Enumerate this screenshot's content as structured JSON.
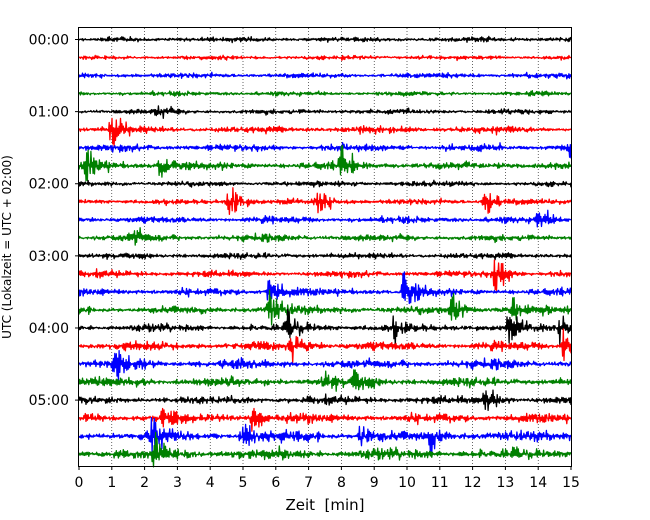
{
  "chart_data": {
    "type": "line",
    "title": "",
    "xlabel": "Zeit  [min]",
    "ylabel": "UTC (Lokalzeit = UTC + 02:00)",
    "xlim": [
      0,
      15
    ],
    "x_ticks": [
      "0",
      "1",
      "2",
      "3",
      "4",
      "5",
      "6",
      "7",
      "8",
      "9",
      "10",
      "11",
      "12",
      "13",
      "14",
      "15"
    ],
    "y_tick_labels": [
      "00:00",
      "01:00",
      "02:00",
      "03:00",
      "04:00",
      "05:00"
    ],
    "y_tick_rows": [
      0,
      4,
      8,
      12,
      16,
      20
    ],
    "grid": "vertical-dotted",
    "trace_colors": [
      "#000000",
      "#ff0000",
      "#0000ff",
      "#008000"
    ],
    "traces_start_times": [
      "00:00",
      "00:15",
      "00:30",
      "00:45",
      "01:00",
      "01:15",
      "01:30",
      "01:45",
      "02:00",
      "02:15",
      "02:30",
      "02:45",
      "03:00",
      "03:15",
      "03:30",
      "03:45",
      "04:00",
      "04:15",
      "04:30",
      "04:45",
      "05:00",
      "05:15",
      "05:30",
      "05:45"
    ],
    "trace_noise": [
      0.35,
      0.3,
      0.38,
      0.32,
      0.38,
      0.5,
      0.55,
      0.58,
      0.4,
      0.42,
      0.48,
      0.52,
      0.45,
      0.5,
      0.55,
      0.62,
      0.58,
      0.65,
      0.7,
      0.72,
      0.6,
      0.7,
      0.8,
      0.85
    ],
    "events": [
      {
        "row": 4,
        "t": 2.4,
        "amp": 0.5
      },
      {
        "row": 5,
        "t": 1.0,
        "amp": 1.8
      },
      {
        "row": 6,
        "t": 15.0,
        "amp": 0.8
      },
      {
        "row": 7,
        "t": 0.25,
        "amp": 1.3
      },
      {
        "row": 7,
        "t": 2.5,
        "amp": 1.5
      },
      {
        "row": 7,
        "t": 8.0,
        "amp": 1.3
      },
      {
        "row": 9,
        "t": 4.6,
        "amp": 1.2
      },
      {
        "row": 9,
        "t": 7.3,
        "amp": 1.1
      },
      {
        "row": 9,
        "t": 12.4,
        "amp": 1.3
      },
      {
        "row": 10,
        "t": 14.0,
        "amp": 1.0
      },
      {
        "row": 11,
        "t": 1.6,
        "amp": 0.9
      },
      {
        "row": 13,
        "t": 12.7,
        "amp": 1.6
      },
      {
        "row": 14,
        "t": 5.8,
        "amp": 1.2
      },
      {
        "row": 14,
        "t": 9.9,
        "amp": 1.9
      },
      {
        "row": 15,
        "t": 5.8,
        "amp": 1.3
      },
      {
        "row": 15,
        "t": 11.4,
        "amp": 1.3
      },
      {
        "row": 15,
        "t": 13.2,
        "amp": 1.0
      },
      {
        "row": 16,
        "t": 6.4,
        "amp": 1.1
      },
      {
        "row": 16,
        "t": 9.6,
        "amp": 0.9
      },
      {
        "row": 16,
        "t": 13.1,
        "amp": 1.2
      },
      {
        "row": 16,
        "t": 14.7,
        "amp": 1.1
      },
      {
        "row": 17,
        "t": 6.5,
        "amp": 1.1
      },
      {
        "row": 17,
        "t": 14.8,
        "amp": 1.3
      },
      {
        "row": 18,
        "t": 1.1,
        "amp": 1.2
      },
      {
        "row": 19,
        "t": 8.4,
        "amp": 0.9
      },
      {
        "row": 19,
        "t": 7.5,
        "amp": 0.8
      },
      {
        "row": 20,
        "t": 12.4,
        "amp": 1.2
      },
      {
        "row": 21,
        "t": 2.6,
        "amp": 1.0
      },
      {
        "row": 21,
        "t": 5.3,
        "amp": 1.5
      },
      {
        "row": 22,
        "t": 2.2,
        "amp": 1.1
      },
      {
        "row": 22,
        "t": 5.0,
        "amp": 1.1
      },
      {
        "row": 22,
        "t": 8.6,
        "amp": 1.0
      },
      {
        "row": 22,
        "t": 10.7,
        "amp": 1.2
      },
      {
        "row": 23,
        "t": 2.3,
        "amp": 1.2
      }
    ]
  }
}
